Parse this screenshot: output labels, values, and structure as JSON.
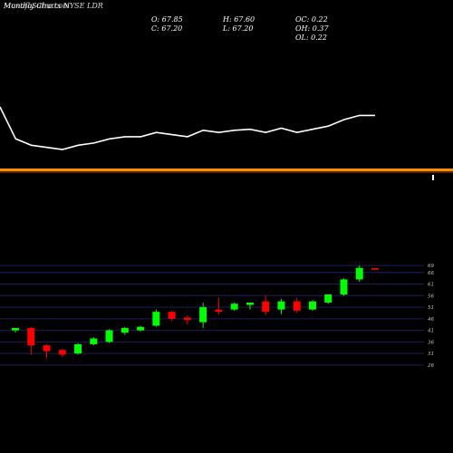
{
  "header": {
    "title": "MunafaSutra.com",
    "subtitle": "Monthly Charts NYSE LDR",
    "o_label": "O: 67.85",
    "c_label": "C: 67.20",
    "h_label": "H: 67.60",
    "l_label": "L: 67.20",
    "oc_label": "OC: 0.22",
    "oh_label": "OH: 0.37",
    "ol_label": "OL: 0.22"
  },
  "colors": {
    "background": "#000000",
    "up": "#00ff00",
    "down": "#ff0000",
    "line": "#ffffff",
    "separator": "#ff8c00",
    "gridline": "#1e1e5a",
    "axis_text": "#bbbbbb"
  },
  "chart_data": [
    {
      "type": "line",
      "description_panel": "upper",
      "values": [
        70,
        55,
        52,
        51,
        50,
        52,
        53,
        55,
        56,
        56,
        58,
        57,
        56,
        59,
        58,
        59,
        59.5,
        58,
        60,
        58,
        59.5,
        61,
        64,
        66,
        66
      ]
    },
    {
      "type": "candlestick",
      "y_ticks": [
        69,
        66,
        61,
        56,
        51,
        46,
        41,
        36,
        31,
        26
      ],
      "ylim": [
        24,
        71
      ],
      "candles": [
        {
          "o": 41.0,
          "h": 42.0,
          "l": 40.0,
          "c": 42.0
        },
        {
          "o": 42.0,
          "h": 42.5,
          "l": 30.5,
          "c": 34.5
        },
        {
          "o": 34.5,
          "h": 35.0,
          "l": 29.0,
          "c": 32.0
        },
        {
          "o": 32.5,
          "h": 33.0,
          "l": 29.5,
          "c": 30.5
        },
        {
          "o": 31.0,
          "h": 35.5,
          "l": 30.5,
          "c": 35.0
        },
        {
          "o": 35.0,
          "h": 38.0,
          "l": 34.5,
          "c": 37.5
        },
        {
          "o": 36.0,
          "h": 41.5,
          "l": 35.5,
          "c": 41.0
        },
        {
          "o": 40.0,
          "h": 42.5,
          "l": 39.0,
          "c": 42.0
        },
        {
          "o": 41.0,
          "h": 43.0,
          "l": 40.5,
          "c": 42.5
        },
        {
          "o": 43.0,
          "h": 50.0,
          "l": 42.5,
          "c": 49.0
        },
        {
          "o": 49.0,
          "h": 49.5,
          "l": 45.0,
          "c": 46.0
        },
        {
          "o": 46.5,
          "h": 47.5,
          "l": 43.5,
          "c": 45.5
        },
        {
          "o": 44.5,
          "h": 53.0,
          "l": 42.0,
          "c": 51.0
        },
        {
          "o": 50.0,
          "h": 55.0,
          "l": 48.0,
          "c": 49.0
        },
        {
          "o": 50.0,
          "h": 53.0,
          "l": 49.5,
          "c": 52.5
        },
        {
          "o": 52.0,
          "h": 53.0,
          "l": 50.0,
          "c": 53.0
        },
        {
          "o": 53.5,
          "h": 56.0,
          "l": 47.5,
          "c": 49.0
        },
        {
          "o": 50.0,
          "h": 54.5,
          "l": 48.0,
          "c": 53.5
        },
        {
          "o": 53.5,
          "h": 55.0,
          "l": 48.5,
          "c": 49.5
        },
        {
          "o": 50.0,
          "h": 54.0,
          "l": 49.5,
          "c": 53.5
        },
        {
          "o": 53.0,
          "h": 56.5,
          "l": 52.5,
          "c": 56.5
        },
        {
          "o": 56.5,
          "h": 63.5,
          "l": 56.0,
          "c": 63.0
        },
        {
          "o": 63.0,
          "h": 69.0,
          "l": 62.0,
          "c": 68.0
        },
        {
          "o": 67.85,
          "h": 67.6,
          "l": 67.2,
          "c": 67.2
        }
      ]
    }
  ]
}
